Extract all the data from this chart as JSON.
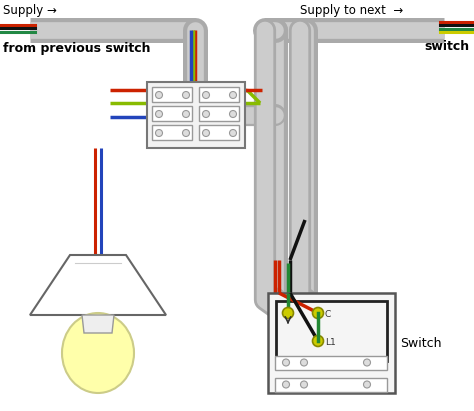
{
  "bg_color": "#ffffff",
  "supply_left_label": "Supply →",
  "supply_right_label": "Supply to next  →",
  "from_prev_label": "from previous switch",
  "switch_label": "switch",
  "switch_box_label": "Switch",
  "fig_width": 4.74,
  "fig_height": 4.11,
  "dpi": 100,
  "conduit_outer_color": "#aaaaaa",
  "conduit_inner_color": "#cccccc",
  "conduit_lw": 18,
  "conduit_inner_lw": 12
}
